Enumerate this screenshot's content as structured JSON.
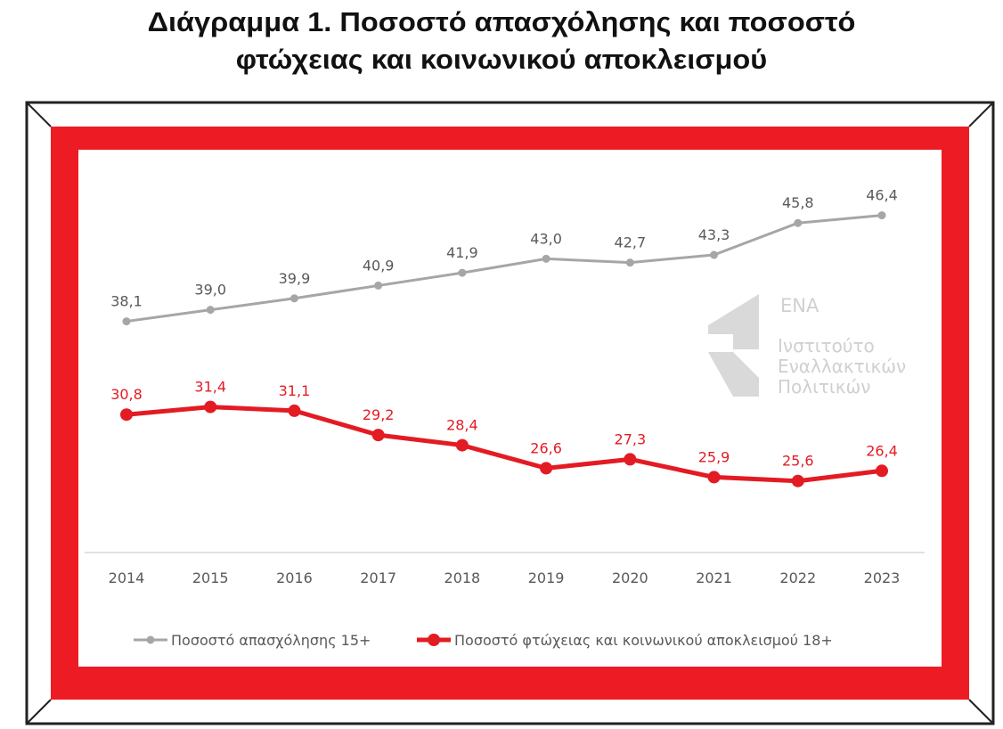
{
  "title_lines": [
    "Διάγραμμα 1. Ποσοστό απασχόλησης και ποσοστό",
    "φτώχειας και κοινωνικού αποκλεισμού"
  ],
  "logo": {
    "name": "ΕΝΑ",
    "lines": [
      "Ινστιτούτο",
      "Εναλλακτικών",
      "Πολιτικών"
    ]
  },
  "colors": {
    "frame_red": "#ED1C24",
    "employment": "#A6A6A6",
    "poverty": "#E31B23",
    "logo": "#D9D9D9"
  },
  "chart_data": {
    "type": "line",
    "categories": [
      "2014",
      "2015",
      "2016",
      "2017",
      "2018",
      "2019",
      "2020",
      "2021",
      "2022",
      "2023"
    ],
    "series": [
      {
        "name": "Ποσοστό απασχόλησης 15+",
        "color": "#A6A6A6",
        "values": [
          38.1,
          39.0,
          39.9,
          40.9,
          41.9,
          43.0,
          42.7,
          43.3,
          45.8,
          46.4
        ],
        "labels": [
          "38,1",
          "39,0",
          "39,9",
          "40,9",
          "41,9",
          "43,0",
          "42,7",
          "43,3",
          "45,8",
          "46,4"
        ]
      },
      {
        "name": "Ποσοστό φτώχειας και κοινωνικού αποκλεισμού 18+",
        "color": "#E31B23",
        "values": [
          30.8,
          31.4,
          31.1,
          29.2,
          28.4,
          26.6,
          27.3,
          25.9,
          25.6,
          26.4
        ],
        "labels": [
          "30,8",
          "31,4",
          "31,1",
          "29,2",
          "28,4",
          "26,6",
          "27,3",
          "25,9",
          "25,6",
          "26,4"
        ]
      }
    ],
    "ylim": [
      20,
      50
    ],
    "grid": false,
    "y_axis_visible": false,
    "legend": "bottom"
  }
}
